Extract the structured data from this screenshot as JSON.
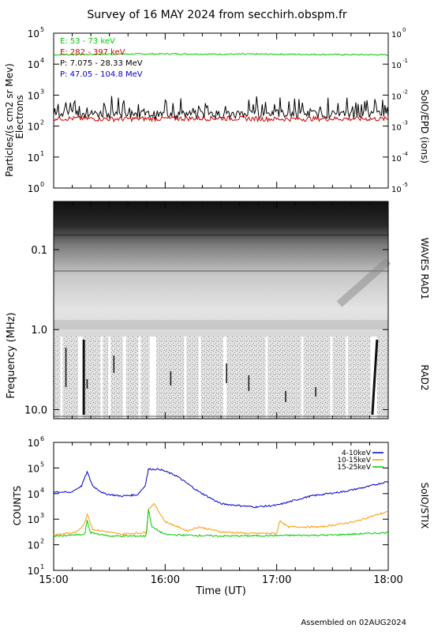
{
  "title": "Survey of 16 MAY 2024 from secchirh.obspm.fr",
  "footer": "Assembled on 02AUG2024",
  "colors": {
    "green": "#00cc00",
    "red": "#cc0000",
    "black": "#000000",
    "blue": "#0000cc",
    "orange": "#ff9900"
  },
  "x_axis": {
    "label": "Time (UT)",
    "ticks": [
      "15:00",
      "16:00",
      "17:00",
      "18:00"
    ],
    "range_hours": [
      15,
      18
    ]
  },
  "panels": {
    "particles": {
      "ylabel": "Particles/(s cm2 sr Mev)",
      "ylabel2": "Electrons",
      "right_label": "SoIO/EPD (ions)",
      "left_ticks": [
        "10",
        "10",
        "10",
        "10",
        "10",
        "10"
      ],
      "left_exps": [
        "0",
        "1",
        "2",
        "3",
        "4",
        "5"
      ],
      "right_ticks": [
        "10",
        "10",
        "10",
        "10",
        "10",
        "10"
      ],
      "right_exps": [
        "-5",
        "-4",
        "-3",
        "-2",
        "-1",
        "0"
      ]
    },
    "waves": {
      "ylabel": "Frequency (MHz)",
      "right_label_top": "WAVES RAD1",
      "right_label_bottom": "RAD2",
      "ticks": [
        "0.1",
        "1.0",
        "10.0"
      ]
    },
    "stix": {
      "ylabel": "COUNTS",
      "right_label": "SoIO/STIX",
      "left_ticks": [
        "10",
        "10",
        "10",
        "10",
        "10",
        "10"
      ],
      "left_exps": [
        "1",
        "2",
        "3",
        "4",
        "5",
        "6"
      ]
    }
  },
  "chart_data": [
    {
      "type": "line",
      "panel": "particles",
      "log_y": true,
      "ylim": [
        1,
        100000
      ],
      "series": [
        {
          "name": "E: 53 - 73 keV",
          "color": "#00cc00",
          "x": [
            15.0,
            15.5,
            16.0,
            16.5,
            17.0,
            17.5,
            18.0
          ],
          "y": [
            20000,
            21000,
            21500,
            21000,
            21000,
            20500,
            20000
          ]
        },
        {
          "name": "E: 282 - 397 keV",
          "color": "#cc0000",
          "x": [
            15.0,
            15.5,
            16.0,
            16.5,
            17.0,
            17.5,
            18.0
          ],
          "y": [
            180,
            170,
            175,
            180,
            170,
            175,
            170
          ]
        },
        {
          "name": "P: 7.075 - 28.33 MeV",
          "color": "#000000",
          "x": [
            15.0,
            15.5,
            16.0,
            16.5,
            17.0,
            17.5,
            18.0
          ],
          "y": [
            250,
            260,
            240,
            250,
            260,
            250,
            240
          ]
        },
        {
          "name": "P: 47.05 - 104.8 MeV",
          "color": "#0000cc",
          "x": [],
          "y": []
        }
      ]
    },
    {
      "type": "heatmap",
      "panel": "waves",
      "log_y": true,
      "ylim_mhz": [
        0.025,
        13
      ],
      "rad1_rad2_boundary_mhz": 1.0
    },
    {
      "type": "line",
      "panel": "stix",
      "log_y": true,
      "ylim": [
        10,
        1000000
      ],
      "series": [
        {
          "name": "4-10keV",
          "color": "#0000cc",
          "x": [
            15.0,
            15.15,
            15.25,
            15.3,
            15.35,
            15.45,
            15.6,
            15.75,
            15.82,
            15.85,
            15.95,
            16.1,
            16.3,
            16.5,
            16.8,
            17.0,
            17.3,
            17.6,
            17.8,
            18.0
          ],
          "y": [
            12000,
            11000,
            20000,
            70000,
            20000,
            10000,
            8000,
            9000,
            20000,
            90000,
            90000,
            50000,
            12000,
            4000,
            3000,
            3500,
            8000,
            12000,
            18000,
            30000
          ]
        },
        {
          "name": "10-15keV",
          "color": "#ff9900",
          "x": [
            15.0,
            15.2,
            15.28,
            15.3,
            15.35,
            15.6,
            15.83,
            15.85,
            15.9,
            16.0,
            16.2,
            16.3,
            16.5,
            16.75,
            17.0,
            17.03,
            17.1,
            17.4,
            17.7,
            17.9,
            18.0
          ],
          "y": [
            250,
            300,
            700,
            1700,
            400,
            260,
            300,
            2500,
            4000,
            800,
            350,
            500,
            320,
            280,
            280,
            900,
            500,
            500,
            800,
            1500,
            2000
          ]
        },
        {
          "name": "15-25keV",
          "color": "#00cc00",
          "x": [
            15.0,
            15.28,
            15.3,
            15.33,
            15.5,
            15.83,
            15.85,
            15.88,
            16.0,
            16.5,
            17.0,
            17.5,
            18.0
          ],
          "y": [
            220,
            250,
            900,
            300,
            220,
            220,
            2500,
            500,
            250,
            220,
            230,
            240,
            300
          ]
        }
      ]
    }
  ]
}
